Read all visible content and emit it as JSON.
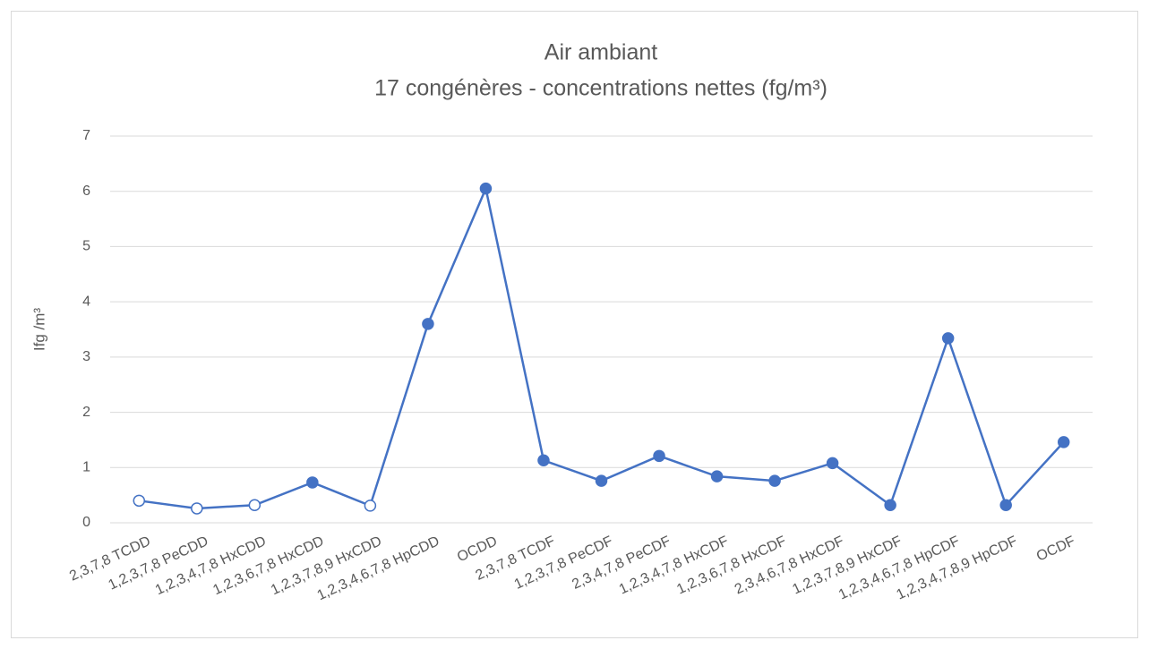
{
  "chart_data": {
    "type": "line",
    "title": "Air ambiant",
    "subtitle": "17 congénères - concentrations nettes (fg/m³)",
    "y_label": "Ifg /m³",
    "categories": [
      "2,3,7,8 TCDD",
      "1,2,3,7,8 PeCDD",
      "1,2,3,4,7,8 HxCDD",
      "1,2,3,6,7,8 HxCDD",
      "1,2,3,7,8,9 HxCDD",
      "1,2,3,4,6,7,8 HpCDD",
      "OCDD",
      "2,3,7,8 TCDF",
      "1,2,3,7,8 PeCDF",
      "2,3,4,7,8 PeCDF",
      "1,2,3,4,7,8 HxCDF",
      "1,2,3,6,7,8 HxCDF",
      "2,3,4,6,7,8 HxCDF",
      "1,2,3,7,8,9 HxCDF",
      "1,2,3,4,6,7,8 HpCDF",
      "1,2,3,4,7,8,9 HpCDF",
      "OCDF"
    ],
    "series": [
      {
        "color": "#4472c4",
        "values": [
          0.4,
          0.26,
          0.32,
          0.73,
          0.31,
          3.6,
          6.05,
          1.13,
          0.76,
          1.21,
          0.84,
          0.76,
          1.08,
          0.32,
          3.34,
          0.32,
          1.46
        ],
        "open_markers": [
          true,
          true,
          true,
          false,
          true,
          false,
          false,
          false,
          false,
          false,
          false,
          false,
          false,
          false,
          false,
          false,
          false
        ]
      }
    ],
    "ylim": [
      0,
      7
    ],
    "yticks": [
      0,
      1,
      2,
      3,
      4,
      5,
      6,
      7
    ],
    "grid": true
  }
}
